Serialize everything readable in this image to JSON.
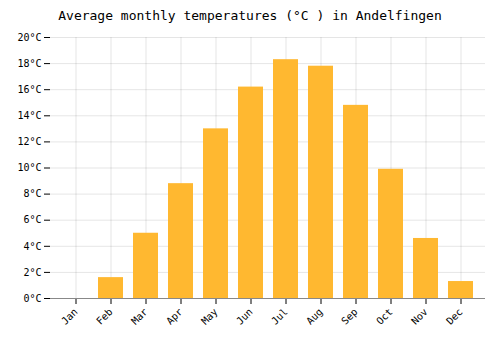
{
  "chart_data": {
    "type": "bar",
    "title": "Average monthly temperatures (°C ) in Andelfingen",
    "categories": [
      "Jan",
      "Feb",
      "Mar",
      "Apr",
      "May",
      "Jun",
      "Jul",
      "Aug",
      "Sep",
      "Oct",
      "Nov",
      "Dec"
    ],
    "values": [
      0.0,
      1.6,
      5.0,
      8.8,
      13.0,
      16.2,
      18.3,
      17.8,
      14.8,
      9.9,
      4.6,
      1.3
    ],
    "color": "#FFB830",
    "ylim": [
      0,
      20
    ],
    "yticks": [
      {
        "value": 0,
        "label": "0°C"
      },
      {
        "value": 2,
        "label": "2°C"
      },
      {
        "value": 4,
        "label": "4°C"
      },
      {
        "value": 6,
        "label": "6°C"
      },
      {
        "value": 8,
        "label": "8°C"
      },
      {
        "value": 10,
        "label": "10°C"
      },
      {
        "value": 12,
        "label": "12°C"
      },
      {
        "value": 14,
        "label": "14°C"
      },
      {
        "value": 16,
        "label": "16°C"
      },
      {
        "value": 18,
        "label": "18°C"
      },
      {
        "value": 20,
        "label": "20°C"
      }
    ],
    "grid": true
  }
}
